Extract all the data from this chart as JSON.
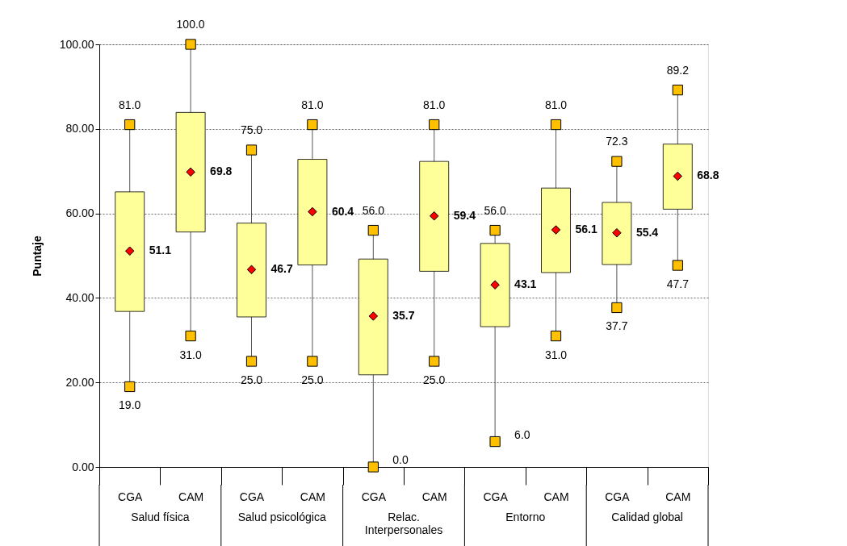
{
  "chart_data": {
    "type": "box",
    "ylabel": "Puntaje",
    "categories": [
      "CGA",
      "CAM",
      "CGA",
      "CAM",
      "CGA",
      "CAM",
      "CGA",
      "CAM",
      "CGA",
      "CAM"
    ],
    "series": [
      {
        "type": "box",
        "color": "#ffff99",
        "boxes": [
          {
            "low": 19.0,
            "q1": 36.8,
            "q3": 65.1,
            "high": 81.0
          },
          {
            "low": 31.0,
            "q1": 55.6,
            "q3": 83.9,
            "high": 100.0
          },
          {
            "low": 25.0,
            "q1": 35.5,
            "q3": 57.7,
            "high": 75.0
          },
          {
            "low": 25.0,
            "q1": 47.8,
            "q3": 72.8,
            "high": 81.0
          },
          {
            "low": 0.0,
            "q1": 21.8,
            "q3": 49.2,
            "high": 56.0
          },
          {
            "low": 25.0,
            "q1": 46.3,
            "q3": 72.3,
            "high": 81.0
          },
          {
            "low": 6.0,
            "q1": 33.2,
            "q3": 52.9,
            "high": 56.0
          },
          {
            "low": 31.0,
            "q1": 46.0,
            "q3": 66.0,
            "high": 81.0
          },
          {
            "low": 37.7,
            "q1": 47.9,
            "q3": 62.6,
            "high": 72.3
          },
          {
            "low": 47.7,
            "q1": 61.0,
            "q3": 76.4,
            "high": 89.2
          }
        ]
      },
      {
        "type": "scatter",
        "color": "#ffc000",
        "marker": "square",
        "values": [
          19.0,
          31.0,
          25.0,
          25.0,
          0.0,
          25.0,
          6.0,
          31.0,
          37.7,
          47.7
        ],
        "value_labels": [
          "19.0",
          "31.0",
          "25.0",
          "25.0",
          "0.0",
          "25.0",
          "6.0",
          "31.0",
          "37.7",
          "47.7"
        ]
      },
      {
        "type": "scatter",
        "color": "#ffc000",
        "marker": "square",
        "values": [
          81.0,
          100.0,
          75.0,
          81.0,
          56.0,
          81.0,
          56.0,
          81.0,
          72.3,
          89.2
        ],
        "value_labels": [
          "81.0",
          "100.0",
          "75.0",
          "81.0",
          "56.0",
          "81.0",
          "56.0",
          "81.0",
          "72.3",
          "89.2"
        ]
      },
      {
        "type": "scatter",
        "color": "#ff0000",
        "marker": "diamond",
        "values": [
          51.1,
          69.8,
          46.7,
          60.4,
          35.7,
          59.4,
          43.1,
          56.1,
          55.4,
          68.8
        ],
        "value_labels": [
          "51.1",
          "69.8",
          "46.7",
          "60.4",
          "35.7",
          "59.4",
          "43.1",
          "56.1",
          "55.4",
          "68.8"
        ]
      }
    ],
    "annotations": [
      "Salud física",
      "Salud psicológica",
      "Relac.\nInterpersonales",
      "Entorno",
      "Calidad global"
    ],
    "ylim": [
      0,
      100
    ],
    "yticks": [
      {
        "value": 0,
        "label": "0.00"
      },
      {
        "value": 20,
        "label": "20.00"
      },
      {
        "value": 40,
        "label": "40.00"
      },
      {
        "value": 60,
        "label": "60.00"
      },
      {
        "value": 80,
        "label": "80.00"
      },
      {
        "value": 100,
        "label": "100.00"
      }
    ],
    "grid": "y"
  }
}
